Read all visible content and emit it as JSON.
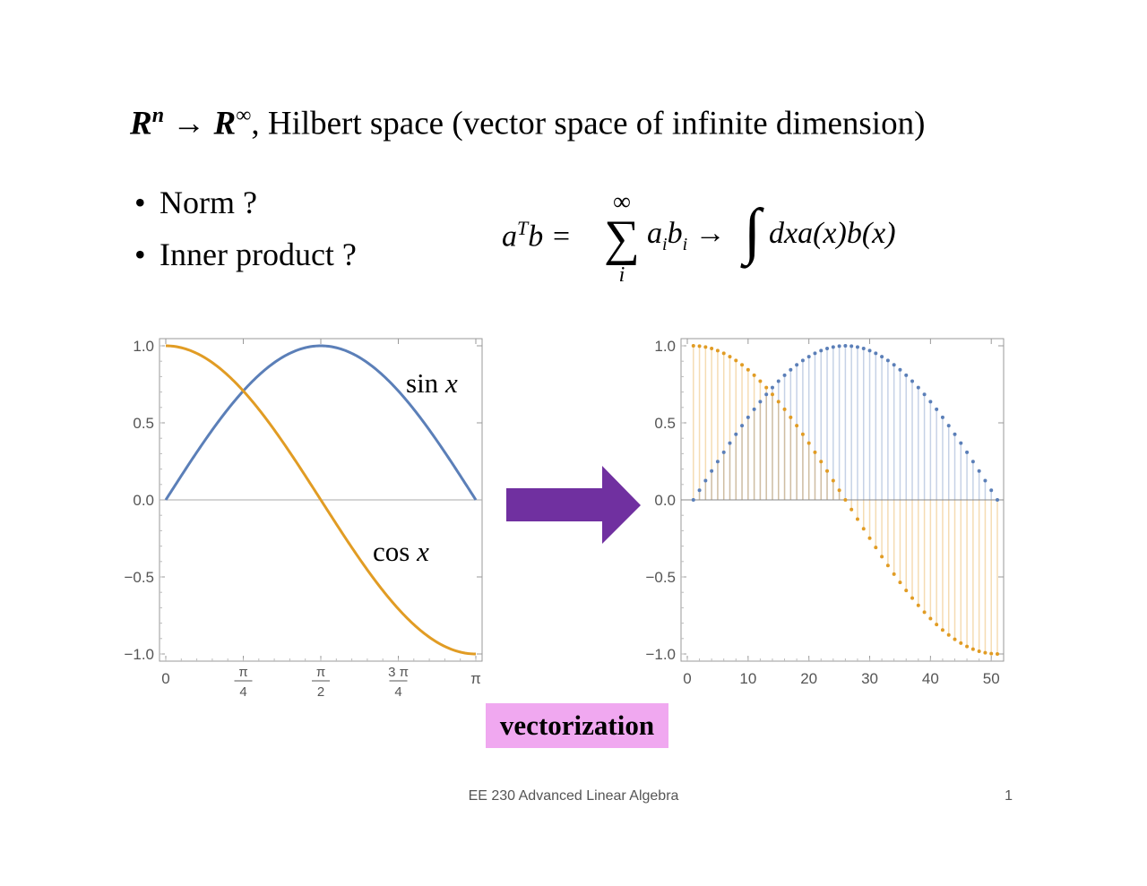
{
  "slide": {
    "title_rn": "R",
    "title_n": "n",
    "title_arrow": "→",
    "title_rinf": "R",
    "title_inf": "∞",
    "title_rest": ", Hilbert space (vector space of infinite dimension)",
    "bullet_1": "Norm ?",
    "bullet_2": "Inner product ?",
    "bullet_symbol": "•",
    "formula": {
      "lhs_a": "a",
      "lhs_T": "T",
      "lhs_b": "b =",
      "sum_top": "∞",
      "sum_symbol": "∑",
      "sum_index": "i",
      "mid_a": "a",
      "mid_i1": "i",
      "mid_b": "b",
      "mid_i2": "i",
      "mid_arrow": " →",
      "integral": "∫",
      "rhs": "dxa(x)b(x)"
    },
    "vectorization_label": "vectorization",
    "footer": "EE 230 Advanced Linear Algebra",
    "page_number": "1"
  },
  "colors": {
    "sin": "#5b7fb8",
    "cos": "#e19c24",
    "arrow": "#7030a0",
    "label_bg": "#f0a8f0"
  },
  "chart_data": [
    {
      "type": "line",
      "xlim": [
        0,
        3.14159
      ],
      "ylim": [
        -1.0,
        1.0
      ],
      "x_ticks": [
        "0",
        "π/4",
        "π/2",
        "3 π/4",
        "π"
      ],
      "y_ticks": [
        "1.0",
        "0.5",
        "0.0",
        "−0.5",
        "−1.0"
      ],
      "series": [
        {
          "name": "sin x",
          "function": "sin"
        },
        {
          "name": "cos x",
          "function": "cos"
        }
      ]
    },
    {
      "type": "scatter",
      "xlim": [
        0,
        51
      ],
      "ylim": [
        -1.0,
        1.0
      ],
      "x_ticks": [
        "0",
        "10",
        "20",
        "30",
        "40",
        "50"
      ],
      "y_ticks": [
        "1.0",
        "0.5",
        "0.0",
        "−0.5",
        "−1.0"
      ],
      "sample_count": 51,
      "series": [
        {
          "function": "sin"
        },
        {
          "function": "cos"
        }
      ]
    }
  ]
}
